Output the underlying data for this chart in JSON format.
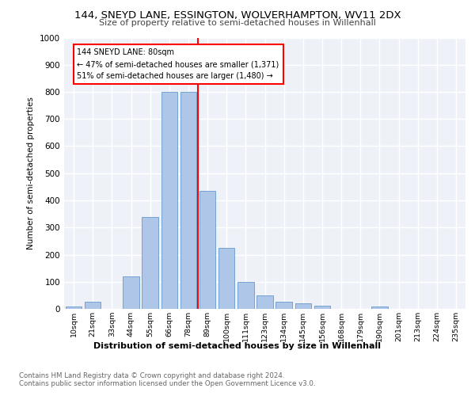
{
  "title": "144, SNEYD LANE, ESSINGTON, WOLVERHAMPTON, WV11 2DX",
  "subtitle": "Size of property relative to semi-detached houses in Willenhall",
  "xlabel": "Distribution of semi-detached houses by size in Willenhall",
  "ylabel": "Number of semi-detached properties",
  "categories": [
    "10sqm",
    "21sqm",
    "33sqm",
    "44sqm",
    "55sqm",
    "66sqm",
    "78sqm",
    "89sqm",
    "100sqm",
    "111sqm",
    "123sqm",
    "134sqm",
    "145sqm",
    "156sqm",
    "168sqm",
    "179sqm",
    "190sqm",
    "201sqm",
    "213sqm",
    "224sqm",
    "235sqm"
  ],
  "values": [
    8,
    25,
    0,
    120,
    340,
    800,
    800,
    435,
    225,
    100,
    50,
    25,
    20,
    12,
    0,
    0,
    8,
    0,
    0,
    0,
    0
  ],
  "bar_color": "#aec6e8",
  "bar_edge_color": "#6699cc",
  "vline_index": 6.5,
  "vline_color": "red",
  "annotation_title": "144 SNEYD LANE: 80sqm",
  "annotation_line1": "← 47% of semi-detached houses are smaller (1,371)",
  "annotation_line2": "51% of semi-detached houses are larger (1,480) →",
  "annotation_box_color": "white",
  "annotation_box_edge_color": "red",
  "ylim": [
    0,
    1000
  ],
  "yticks": [
    0,
    100,
    200,
    300,
    400,
    500,
    600,
    700,
    800,
    900,
    1000
  ],
  "background_color": "#eef2f8",
  "footer": "Contains HM Land Registry data © Crown copyright and database right 2024.\nContains public sector information licensed under the Open Government Licence v3.0."
}
